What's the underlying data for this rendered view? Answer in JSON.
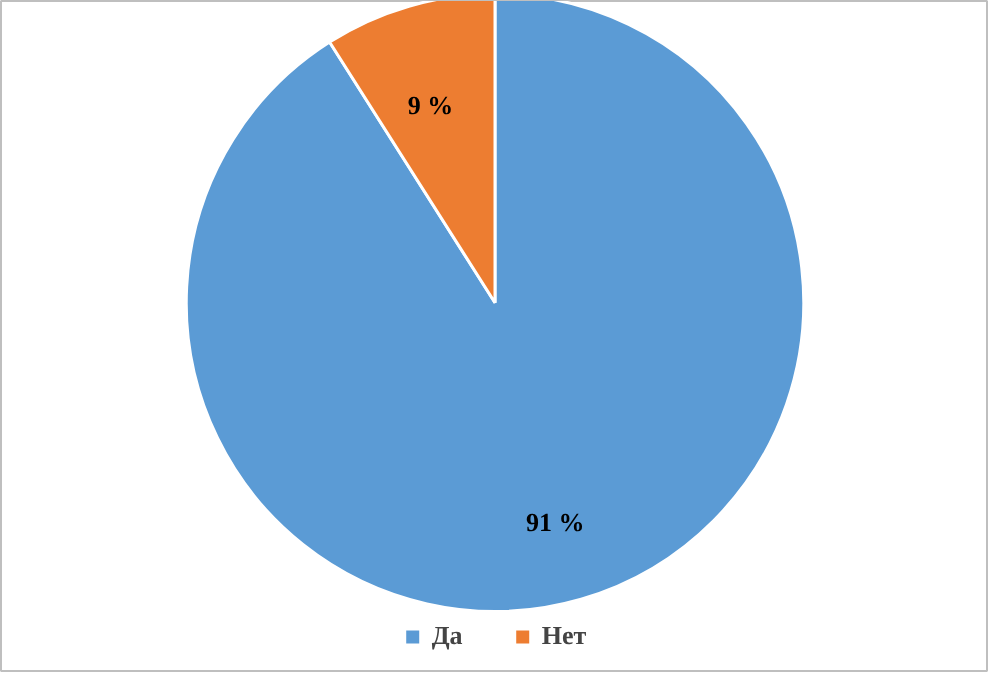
{
  "chart_data": {
    "type": "pie",
    "categories": [
      "Да",
      "Нет"
    ],
    "values": [
      91,
      9
    ],
    "colors": [
      "#5b9bd5",
      "#ed7d31"
    ],
    "value_labels": [
      "91 %",
      "9 %"
    ],
    "legend": "bottom"
  }
}
